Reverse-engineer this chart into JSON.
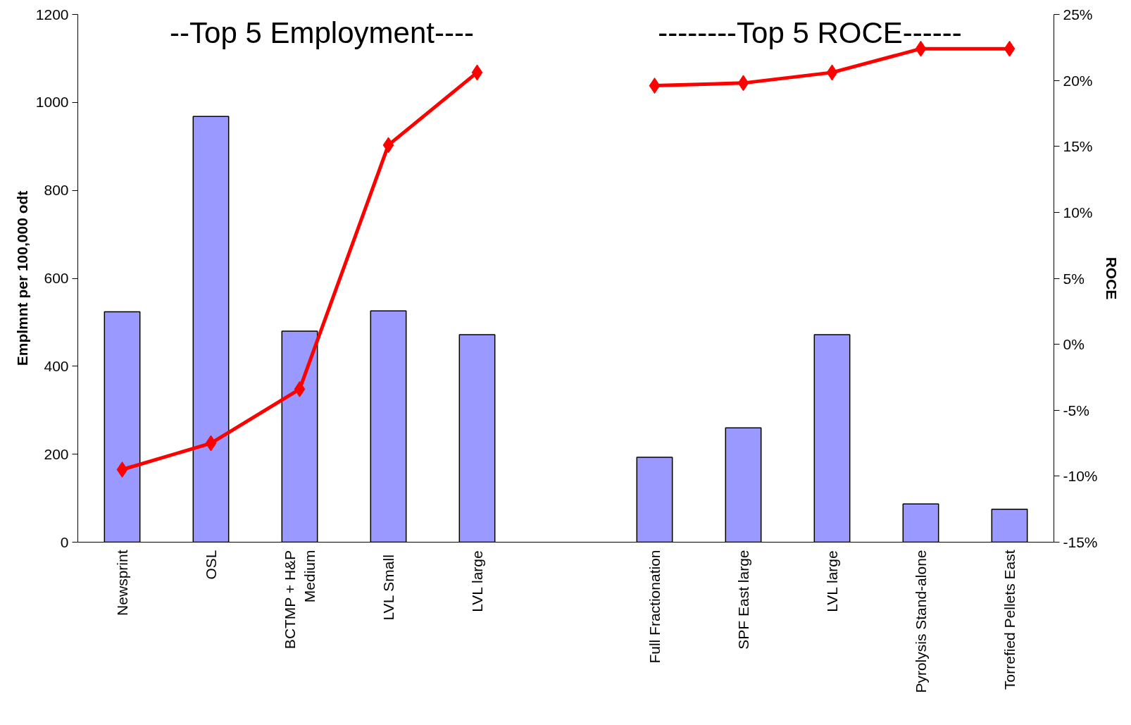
{
  "chart_data": {
    "type": "bar",
    "categories": [
      "Newsprint",
      "OSL",
      "BCTMP + H&P\nMedium",
      "LVL  Small",
      "LVL large",
      null,
      "Full Fractionation",
      "SPF East large",
      "LVL large",
      "Pyrolysis Stand-alone",
      "Torrefied Pellets East"
    ],
    "series": [
      {
        "color": "#9999ff",
        "values": [
          524,
          968,
          480,
          526,
          472,
          null,
          193,
          260,
          472,
          87,
          75
        ]
      },
      {
        "type": "line",
        "axis": "y2",
        "color": "#ff0000",
        "marker": "diamond",
        "values": [
          -9.5,
          -7.5,
          -3.4,
          15.1,
          20.6,
          null,
          19.6,
          19.8,
          20.6,
          22.4,
          22.4
        ]
      }
    ],
    "ylabel": "Emplmnt per 100,000 odt",
    "y2label": "ROCE",
    "ylim": [
      0,
      1200
    ],
    "yticks": [
      0,
      200,
      400,
      600,
      800,
      1000,
      1200
    ],
    "y2lim": [
      -15,
      25
    ],
    "y2ticks": [
      {
        "value": -15,
        "label": "-15%"
      },
      {
        "value": -10,
        "label": "-10%"
      },
      {
        "value": -5,
        "label": "-5%"
      },
      {
        "value": 0,
        "label": "0%"
      },
      {
        "value": 5,
        "label": "5%"
      },
      {
        "value": 10,
        "label": "10%"
      },
      {
        "value": 15,
        "label": "15%"
      },
      {
        "value": 20,
        "label": "20%"
      },
      {
        "value": 25,
        "label": "25%"
      }
    ],
    "annotations": [
      "--Top 5 Employment----",
      "--------Top 5 ROCE------"
    ],
    "grid": false
  }
}
